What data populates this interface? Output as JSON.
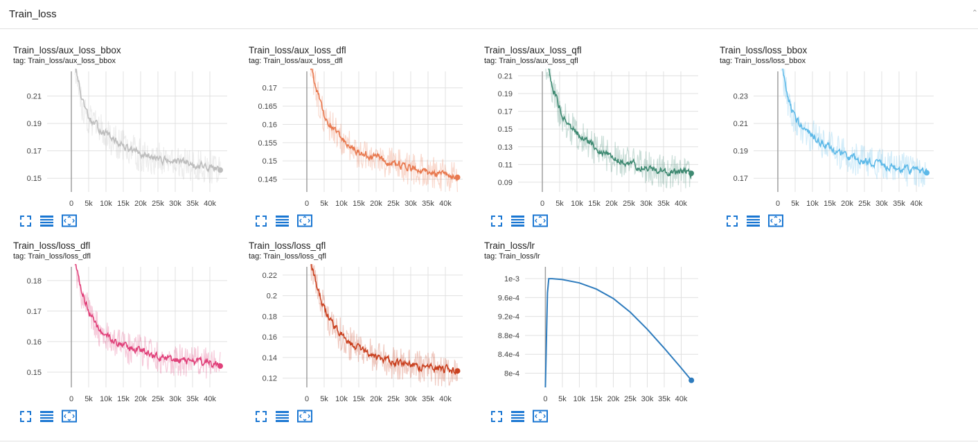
{
  "section": {
    "title": "Train_loss",
    "collapse_glyph": "⌃"
  },
  "icons": {
    "fullscreen": "fullscreen-icon",
    "legend": "list-icon",
    "fit_domain": "fit-domain-icon"
  },
  "colors": {
    "accent_icon": "#1976d2",
    "grid": "#e0e0e0",
    "zero_line": "#9e9e9e"
  },
  "x_ticks": [
    "0",
    "5k",
    "10k",
    "15k",
    "20k",
    "25k",
    "30k",
    "35k",
    "40k"
  ],
  "charts": [
    {
      "id": "aux_loss_bbox",
      "title": "Train_loss/aux_loss_bbox",
      "tag": "tag: Train_loss/aux_loss_bbox",
      "color": "#bdbdbd",
      "chart_data": {
        "type": "line",
        "x_range": [
          -7000,
          45000
        ],
        "ylim": [
          0.14,
          0.228
        ],
        "yticks": [
          0.15,
          0.17,
          0.19,
          0.21
        ],
        "ytick_labels": [
          "0.15",
          "0.17",
          "0.19",
          "0.21"
        ],
        "x": [
          1000,
          3000,
          5000,
          8000,
          12000,
          16000,
          20000,
          25000,
          30000,
          35000,
          40000,
          43000
        ],
        "y": [
          0.232,
          0.205,
          0.193,
          0.186,
          0.178,
          0.172,
          0.167,
          0.164,
          0.162,
          0.16,
          0.158,
          0.156
        ]
      }
    },
    {
      "id": "aux_loss_dfl",
      "title": "Train_loss/aux_loss_dfl",
      "tag": "tag: Train_loss/aux_loss_dfl",
      "color": "#e8784e",
      "chart_data": {
        "type": "line",
        "x_range": [
          -7000,
          45000
        ],
        "ylim": [
          0.1415,
          0.1745
        ],
        "yticks": [
          0.145,
          0.15,
          0.155,
          0.16,
          0.165,
          0.17
        ],
        "ytick_labels": [
          "0.145",
          "0.15",
          "0.155",
          "0.16",
          "0.165",
          "0.17"
        ],
        "x": [
          1000,
          3000,
          5000,
          8000,
          12000,
          16000,
          20000,
          25000,
          30000,
          35000,
          40000,
          43500
        ],
        "y": [
          0.176,
          0.168,
          0.162,
          0.158,
          0.154,
          0.152,
          0.151,
          0.149,
          0.148,
          0.147,
          0.146,
          0.1455
        ]
      }
    },
    {
      "id": "aux_loss_qfl",
      "title": "Train_loss/aux_loss_qfl",
      "tag": "tag: Train_loss/aux_loss_qfl",
      "color": "#3f8a72",
      "chart_data": {
        "type": "line",
        "x_range": [
          -7000,
          45000
        ],
        "ylim": [
          0.079,
          0.215
        ],
        "yticks": [
          0.09,
          0.11,
          0.13,
          0.15,
          0.17,
          0.19,
          0.21
        ],
        "ytick_labels": [
          "0.09",
          "0.11",
          "0.13",
          "0.15",
          "0.17",
          "0.19",
          "0.21"
        ],
        "x": [
          1000,
          3000,
          5000,
          8000,
          12000,
          16000,
          20000,
          25000,
          30000,
          35000,
          40000,
          43000
        ],
        "y": [
          0.225,
          0.195,
          0.17,
          0.152,
          0.138,
          0.127,
          0.118,
          0.111,
          0.106,
          0.103,
          0.101,
          0.1
        ]
      }
    },
    {
      "id": "loss_bbox",
      "title": "Train_loss/loss_bbox",
      "tag": "tag: Train_loss/loss_bbox",
      "color": "#5db9e8",
      "chart_data": {
        "type": "line",
        "x_range": [
          -7000,
          45000
        ],
        "ylim": [
          0.16,
          0.248
        ],
        "yticks": [
          0.17,
          0.19,
          0.21,
          0.23
        ],
        "ytick_labels": [
          "0.17",
          "0.19",
          "0.21",
          "0.23"
        ],
        "x": [
          1000,
          3000,
          5000,
          8000,
          12000,
          16000,
          20000,
          25000,
          30000,
          35000,
          40000,
          43000
        ],
        "y": [
          0.252,
          0.226,
          0.213,
          0.205,
          0.197,
          0.191,
          0.186,
          0.182,
          0.179,
          0.177,
          0.175,
          0.174
        ]
      }
    },
    {
      "id": "loss_dfl",
      "title": "Train_loss/loss_dfl",
      "tag": "tag: Train_loss/loss_dfl",
      "color": "#e0417a",
      "chart_data": {
        "type": "line",
        "x_range": [
          -7000,
          45000
        ],
        "ylim": [
          0.145,
          0.1845
        ],
        "yticks": [
          0.15,
          0.16,
          0.17,
          0.18
        ],
        "ytick_labels": [
          "0.15",
          "0.16",
          "0.17",
          "0.18"
        ],
        "x": [
          1000,
          3000,
          5000,
          8000,
          12000,
          16000,
          20000,
          25000,
          30000,
          35000,
          40000,
          43000
        ],
        "y": [
          0.186,
          0.176,
          0.169,
          0.164,
          0.16,
          0.158,
          0.157,
          0.155,
          0.154,
          0.1535,
          0.153,
          0.152
        ]
      }
    },
    {
      "id": "loss_qfl",
      "title": "Train_loss/loss_qfl",
      "tag": "tag: Train_loss/loss_qfl",
      "color": "#c9401f",
      "chart_data": {
        "type": "line",
        "x_range": [
          -7000,
          45000
        ],
        "ylim": [
          0.111,
          0.228
        ],
        "yticks": [
          0.12,
          0.14,
          0.16,
          0.18,
          0.2,
          0.22
        ],
        "ytick_labels": [
          "0.12",
          "0.14",
          "0.16",
          "0.18",
          "0.2",
          "0.22"
        ],
        "x": [
          1000,
          3000,
          5000,
          8000,
          12000,
          16000,
          20000,
          25000,
          30000,
          35000,
          40000,
          43500
        ],
        "y": [
          0.232,
          0.205,
          0.186,
          0.169,
          0.155,
          0.146,
          0.14,
          0.135,
          0.132,
          0.13,
          0.128,
          0.127
        ]
      }
    },
    {
      "id": "lr",
      "title": "Train_loss/lr",
      "tag": "tag: Train_loss/lr",
      "color": "#2d7bbd",
      "chart_data": {
        "type": "line",
        "x_range": [
          -6000,
          45000
        ],
        "ylim": [
          0.00077,
          0.001025
        ],
        "yticks": [
          0.0008,
          0.00084,
          0.00088,
          0.00092,
          0.00096,
          0.001
        ],
        "ytick_labels": [
          "8e-4",
          "8.4e-4",
          "8.8e-4",
          "9.2e-4",
          "9.6e-4",
          "1e-3"
        ],
        "x": [
          0,
          600,
          1000,
          2000,
          5000,
          10000,
          15000,
          20000,
          25000,
          30000,
          35000,
          40000,
          43000
        ],
        "y": [
          0.00077,
          0.00097,
          0.001,
          0.001,
          0.000998,
          0.000991,
          0.000978,
          0.000958,
          0.000929,
          0.000893,
          0.000853,
          0.000811,
          0.000785
        ]
      }
    }
  ]
}
